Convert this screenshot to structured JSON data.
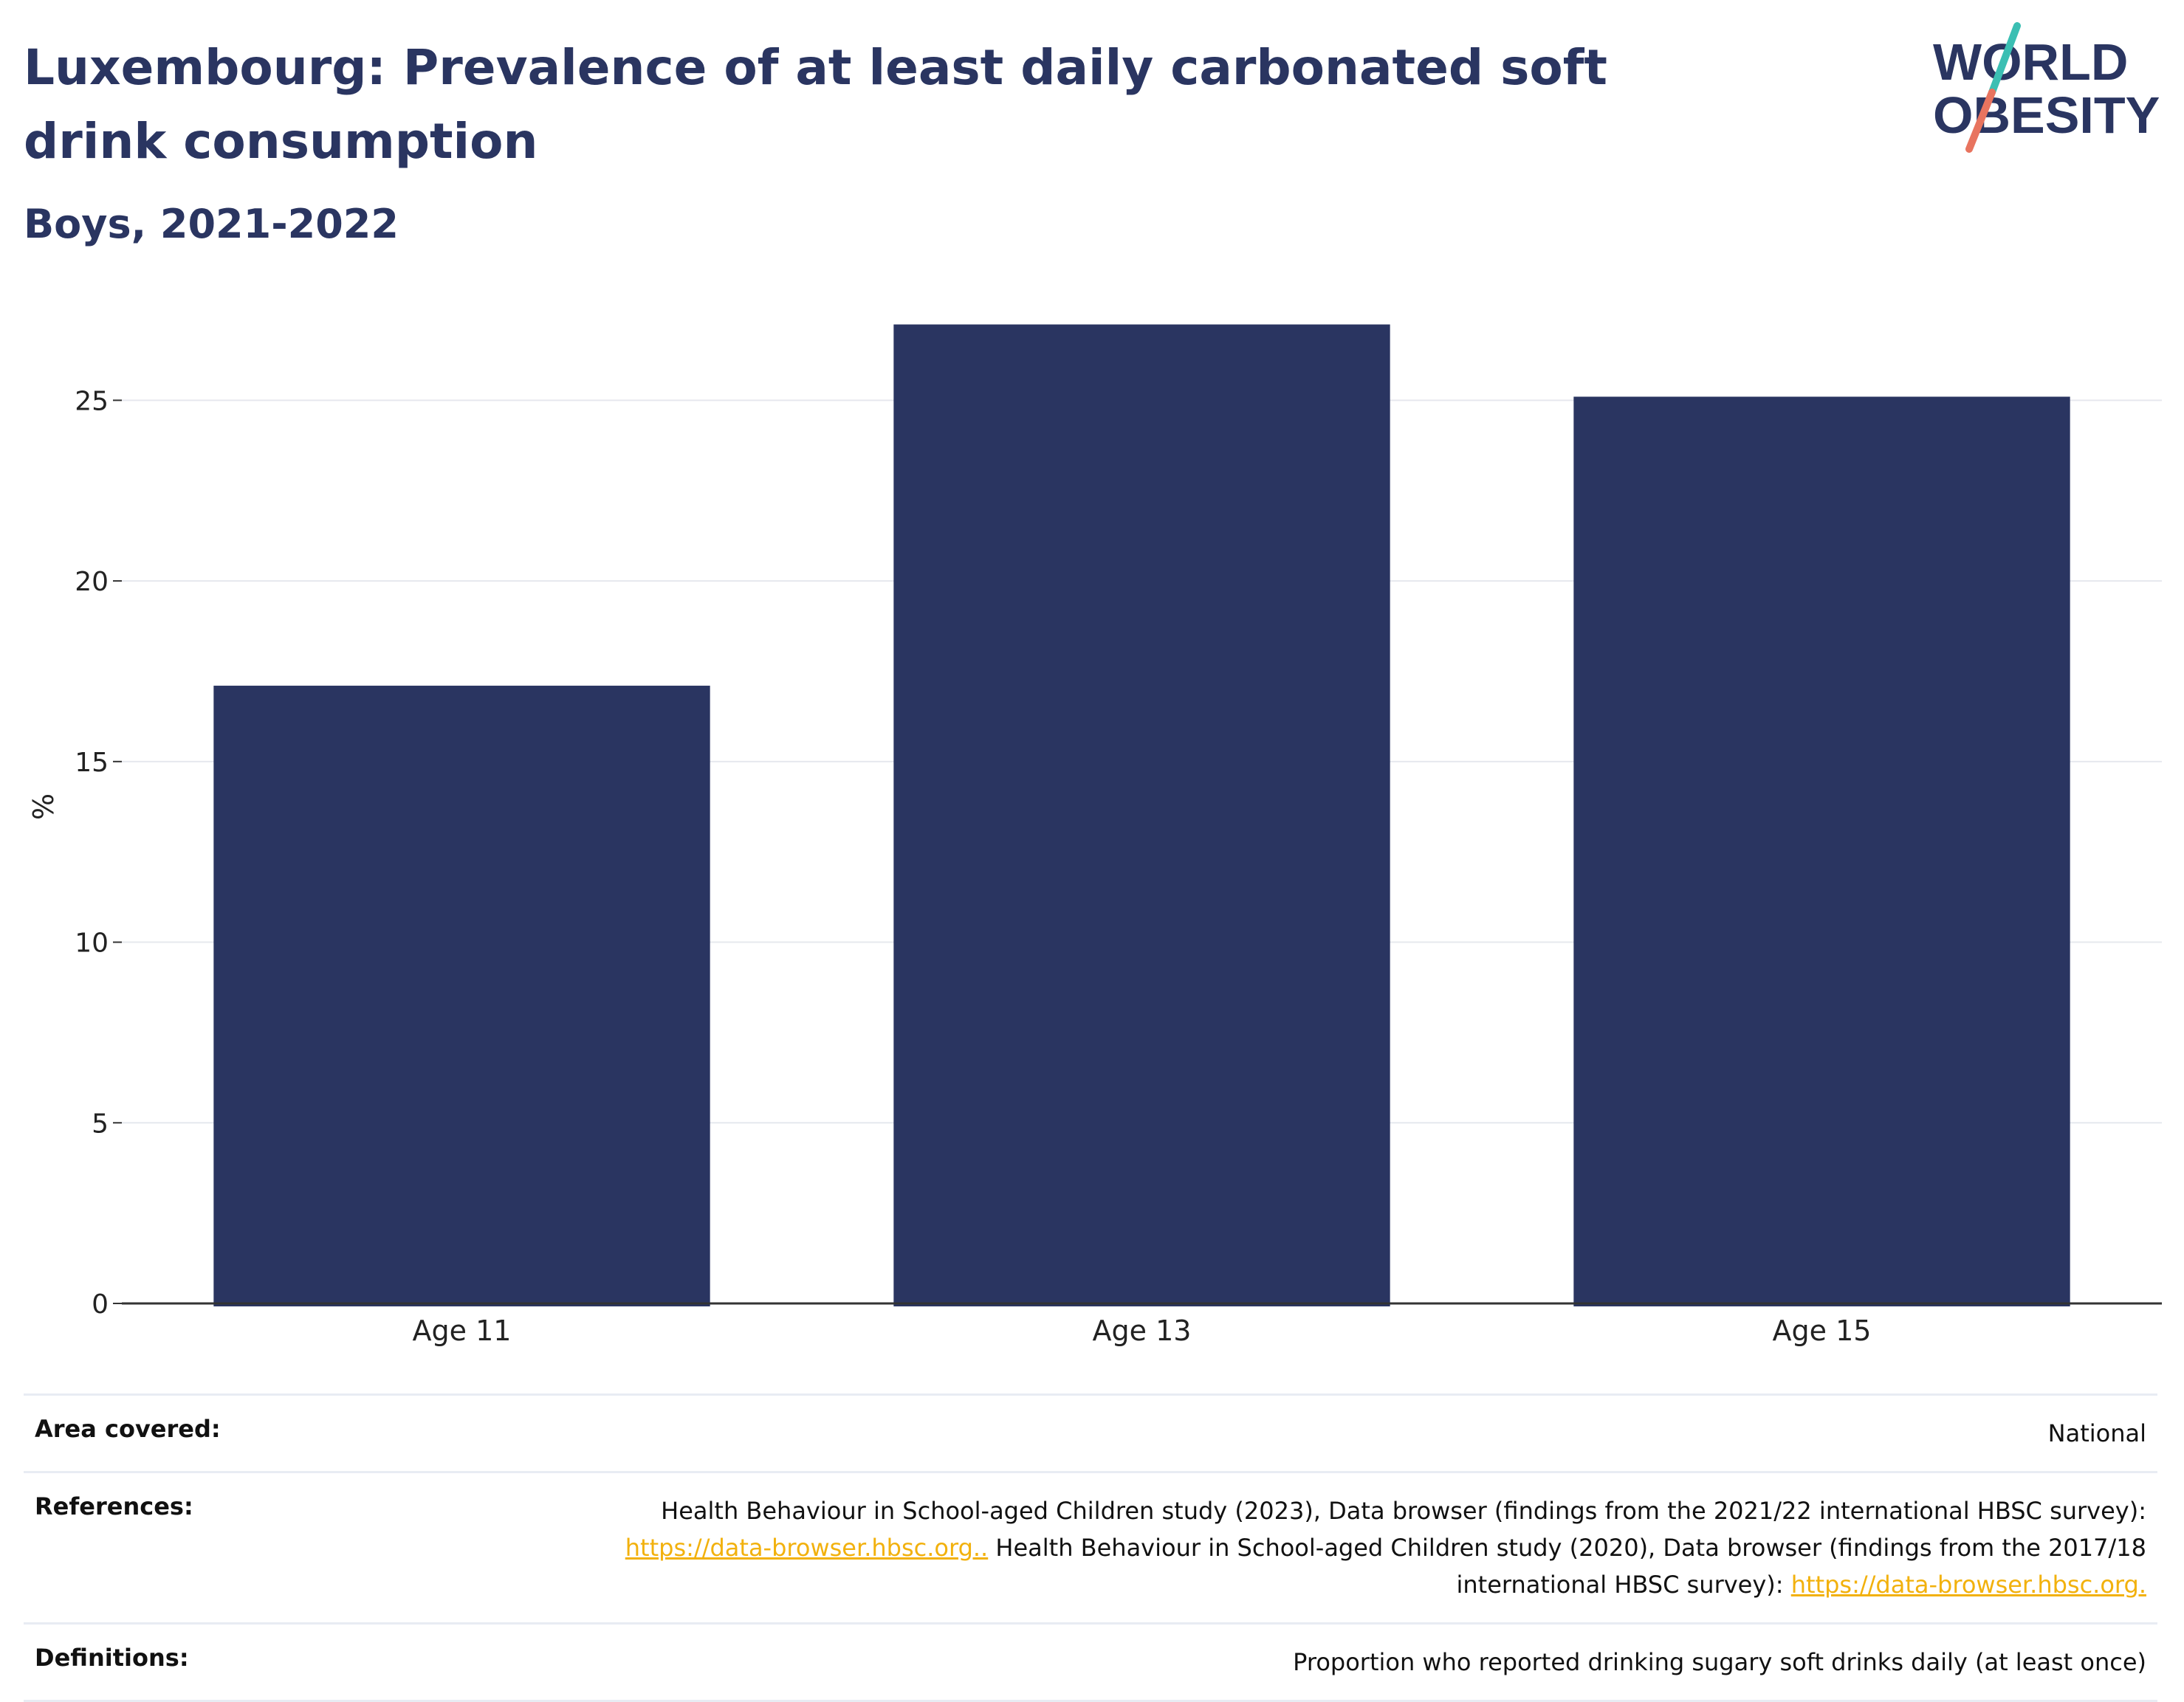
{
  "title": "Luxembourg: Prevalence of at least daily carbonated soft drink consumption",
  "subtitle": "Boys, 2021-2022",
  "logo": {
    "line1": "WORLD",
    "line2": "OBESITY",
    "colors": [
      "#2a3561",
      "#3bbfb3",
      "#e8745f"
    ]
  },
  "chart_data": {
    "type": "bar",
    "categories": [
      "Age 11",
      "Age 13",
      "Age 15"
    ],
    "values": [
      17.1,
      27.1,
      25.1
    ],
    "ylabel": "%",
    "ylim": [
      0,
      27.5
    ],
    "yticks": [
      0,
      5,
      10,
      15,
      20,
      25
    ],
    "bar_color": "#2a3561",
    "grid": true
  },
  "meta": {
    "area_label": "Area covered:",
    "area_value": "National",
    "ref_label": "References:",
    "ref_text1": "Health Behaviour in School-aged Children study (2023), Data browser (findings from the 2021/22 international HBSC survey):",
    "ref_link1": "https://data-browser.hbsc.org..",
    "ref_text2": " Health Behaviour in School-aged Children study (2020), Data browser (findings from the 2017/18",
    "ref_text3": "international HBSC survey): ",
    "ref_link2": "https://data-browser.hbsc.org.",
    "def_label": "Definitions:",
    "def_value": "Proportion who reported drinking sugary soft drinks daily (at least once)"
  }
}
